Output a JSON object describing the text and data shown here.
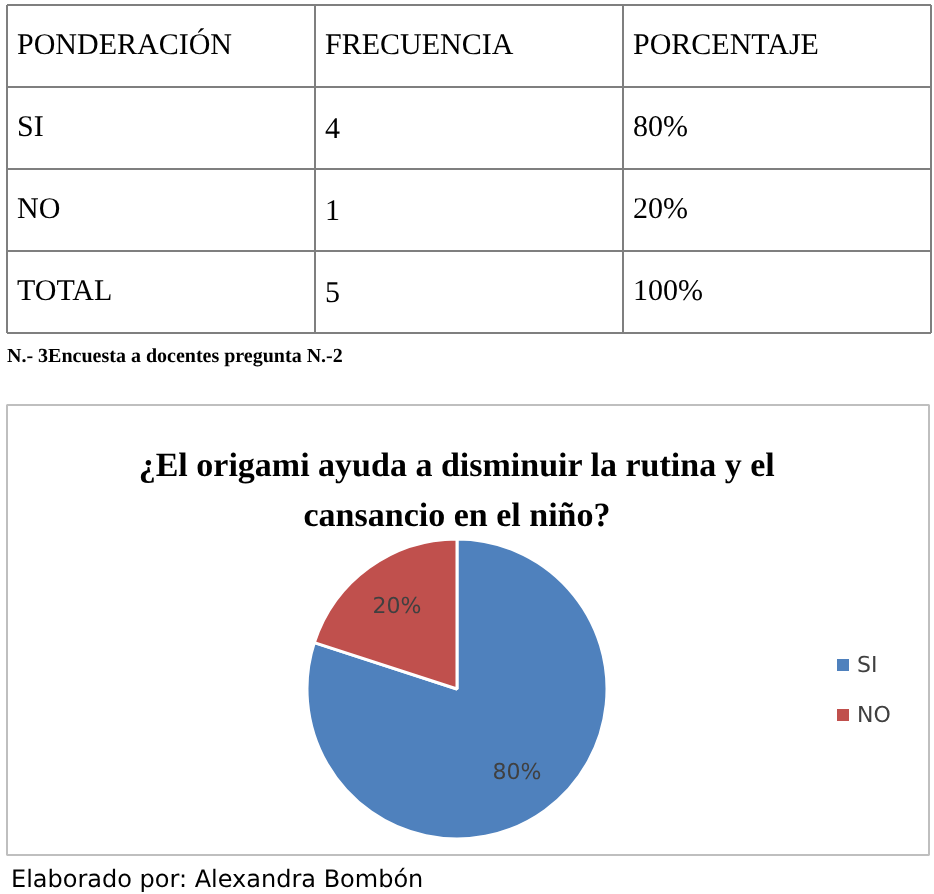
{
  "chart_data": [
    {
      "type": "other",
      "categories": [
        "PONDERACIÓN",
        "FRECUENCIA",
        "PORCENTAJE"
      ],
      "annotations": [
        "SI",
        "4",
        "80%",
        "NO",
        "1",
        "20%",
        "TOTAL",
        "5",
        "100%",
        "N.- 3Encuesta a docentes pregunta N.-2"
      ]
    },
    {
      "type": "pie",
      "title": "¿El origami ayuda a disminuir la rutina y el cansancio en el niño?",
      "categories": [
        "SI",
        "NO"
      ],
      "values": [
        80,
        20
      ],
      "colors": [
        "#4f81bd",
        "#c0504d"
      ],
      "value_labels": [
        "80%",
        "20%"
      ],
      "legend": "right",
      "annotations": [
        "Elaborado por: Alexandra Bombón"
      ]
    }
  ]
}
